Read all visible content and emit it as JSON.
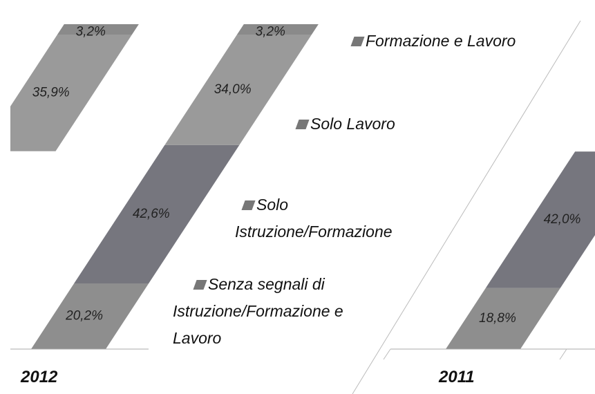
{
  "chart_data": {
    "type": "bar",
    "stacked": true,
    "categories": [
      null,
      "2012",
      "2011"
    ],
    "series": [
      {
        "name": "Senza segnali di Istruzione/Formazione e Lavoro",
        "color": "#8e8e8e",
        "values": [
          null,
          20.2,
          18.8
        ],
        "value_labels": [
          null,
          "20,2%",
          "18,8%"
        ]
      },
      {
        "name": "Solo Istruzione/Formazione",
        "color": "#76767e",
        "values": [
          null,
          42.6,
          42.0
        ],
        "value_labels": [
          null,
          "42,6%",
          "42,0%"
        ]
      },
      {
        "name": "Solo Lavoro",
        "color": "#9a9a9a",
        "values": [
          35.9,
          34.0,
          null
        ],
        "value_labels": [
          "35,9%",
          "34,0%",
          null
        ]
      },
      {
        "name": "Formazione e Lavoro",
        "color": "#8a8a8a",
        "values": [
          3.2,
          3.2,
          null
        ],
        "value_labels": [
          "3,2%",
          "3,2%",
          null
        ]
      }
    ],
    "ylim": [
      0,
      100
    ]
  }
}
